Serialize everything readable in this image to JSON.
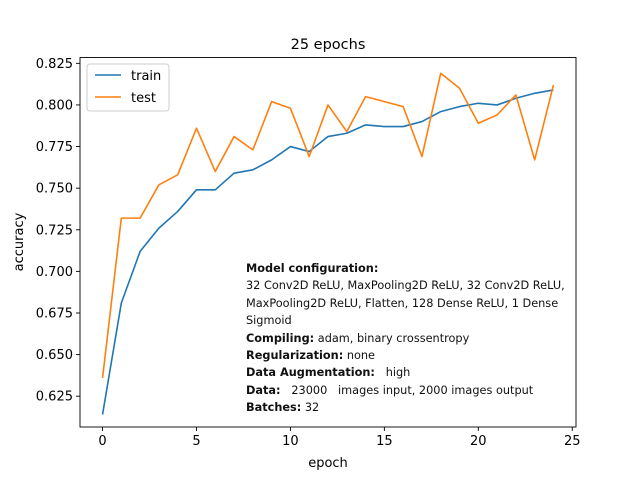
{
  "chart_data": {
    "type": "line",
    "title": "25 epochs",
    "xlabel": "epoch",
    "ylabel": "accuracy",
    "xlim": [
      -1.2,
      25.2
    ],
    "ylim": [
      0.6065,
      0.8285
    ],
    "xticks": [
      0,
      5,
      10,
      15,
      20,
      25
    ],
    "yticks": [
      0.625,
      0.65,
      0.675,
      0.7,
      0.725,
      0.75,
      0.775,
      0.8,
      0.825
    ],
    "legend_position": "top-left",
    "x": [
      0,
      1,
      2,
      3,
      4,
      5,
      6,
      7,
      8,
      9,
      10,
      11,
      12,
      13,
      14,
      15,
      16,
      17,
      18,
      19,
      20,
      21,
      22,
      23,
      24
    ],
    "series": [
      {
        "name": "train",
        "color": "#1f77b4",
        "values": [
          0.614,
          0.681,
          0.712,
          0.726,
          0.736,
          0.749,
          0.749,
          0.759,
          0.761,
          0.767,
          0.775,
          0.772,
          0.781,
          0.783,
          0.788,
          0.787,
          0.787,
          0.79,
          0.796,
          0.799,
          0.801,
          0.8,
          0.804,
          0.807,
          0.809
        ]
      },
      {
        "name": "test",
        "color": "#ff7f0e",
        "values": [
          0.636,
          0.732,
          0.732,
          0.752,
          0.758,
          0.786,
          0.76,
          0.781,
          0.773,
          0.802,
          0.798,
          0.769,
          0.8,
          0.784,
          0.805,
          0.802,
          0.799,
          0.769,
          0.819,
          0.81,
          0.789,
          0.794,
          0.806,
          0.767,
          0.812
        ]
      }
    ]
  },
  "annotation": {
    "heading": "Model configuration:",
    "model": "32 Conv2D ReLU, MaxPooling2D ReLU, 32 Conv2D ReLU, MaxPooling2D ReLU, Flatten, 128 Dense ReLU, 1 Dense Sigmoid",
    "compiling_label": "Compiling:",
    "compiling_value": " adam, binary crossentropy",
    "regularization_label": "Regularization:",
    "regularization_value": " none",
    "augmentation_label": "Data Augmentation:",
    "augmentation_value": "   high",
    "data_label": "Data:",
    "data_value": "   23000   images input, 2000 images output",
    "batches_label": "Batches:",
    "batches_value": " 32"
  }
}
